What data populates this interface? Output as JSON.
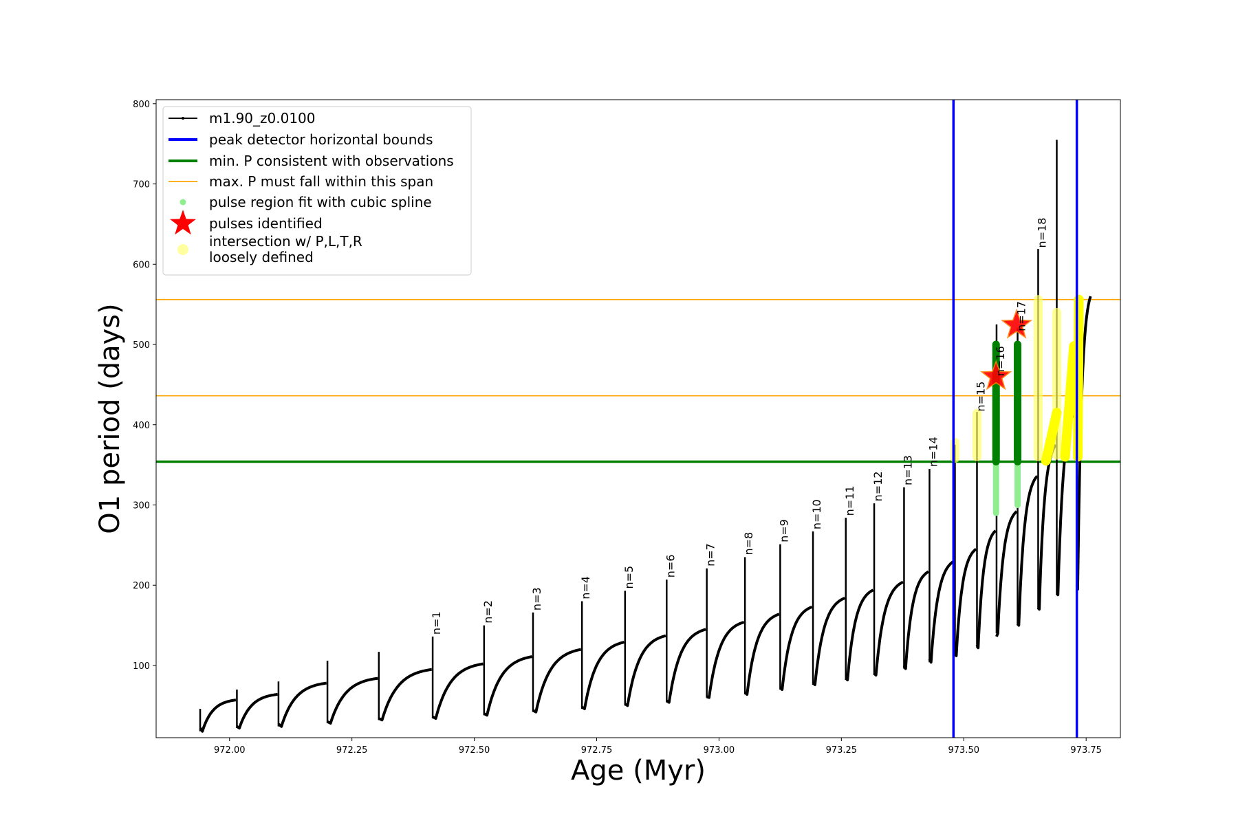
{
  "chart_data": {
    "type": "line",
    "xlabel": "Age (Myr)",
    "ylabel": "O1 period (days)",
    "xlim": [
      971.85,
      973.82
    ],
    "ylim": [
      10,
      805
    ],
    "xticks": [
      972.0,
      972.25,
      972.5,
      972.75,
      973.0,
      973.25,
      973.5,
      973.75
    ],
    "xtick_labels": [
      "972.00",
      "972.25",
      "972.50",
      "972.75",
      "973.00",
      "973.25",
      "973.50",
      "973.75"
    ],
    "yticks": [
      100,
      200,
      300,
      400,
      500,
      600,
      700,
      800
    ],
    "ytick_labels": [
      "100",
      "200",
      "300",
      "400",
      "500",
      "600",
      "700",
      "800"
    ],
    "grid": false,
    "legend_position": "top-left",
    "legend": [
      {
        "label": "m1.90_z0.0100",
        "style": "black-line-dot",
        "color": "#000000"
      },
      {
        "label": "peak detector horizontal bounds",
        "style": "line",
        "color": "#0000ff"
      },
      {
        "label": "min. P consistent with observations",
        "style": "line",
        "color": "#008000"
      },
      {
        "label": "max. P must fall within this span",
        "style": "thin-line",
        "color": "#ffa500"
      },
      {
        "label": "pulse region fit with cubic spline",
        "style": "dot",
        "color": "#90ee90"
      },
      {
        "label": "pulses identified",
        "style": "star",
        "color": "#ff0000"
      },
      {
        "label_lines": [
          "intersection w/ P,L,T,R",
          "loosely defined"
        ],
        "style": "circle",
        "color": "#ffffa0"
      }
    ],
    "vertical_bounds": [
      973.479,
      973.731
    ],
    "min_period": 354,
    "max_period_span": [
      436,
      556
    ],
    "cycles": [
      {
        "start": 971.94,
        "p0": 22,
        "p1": 57,
        "peak": 46,
        "min": 18
      },
      {
        "start": 972.015,
        "p0": 24,
        "p1": 64,
        "peak": 70,
        "min": 22
      },
      {
        "start": 972.1,
        "p0": 27,
        "p1": 78,
        "peak": 80,
        "min": 24
      },
      {
        "start": 972.2,
        "p0": 30,
        "p1": 84,
        "peak": 106,
        "min": 28
      },
      {
        "start": 972.305,
        "p0": 34,
        "p1": 95,
        "peak": 117,
        "min": 32
      },
      {
        "start": 972.415,
        "p0": 36,
        "p1": 102,
        "peak": 136,
        "min": 34
      },
      {
        "start": 972.52,
        "p0": 40,
        "p1": 111,
        "peak": 150,
        "min": 38
      },
      {
        "start": 972.62,
        "p0": 44,
        "p1": 120,
        "peak": 166,
        "min": 42
      },
      {
        "start": 972.72,
        "p0": 48,
        "p1": 129,
        "peak": 180,
        "min": 46
      },
      {
        "start": 972.808,
        "p0": 52,
        "p1": 137,
        "peak": 193,
        "min": 50
      },
      {
        "start": 972.893,
        "p0": 56,
        "p1": 145,
        "peak": 207,
        "min": 54
      },
      {
        "start": 972.975,
        "p0": 61,
        "p1": 154,
        "peak": 221,
        "min": 60
      },
      {
        "start": 973.053,
        "p0": 66,
        "p1": 164,
        "peak": 235,
        "min": 64
      },
      {
        "start": 973.125,
        "p0": 72,
        "p1": 173,
        "peak": 251,
        "min": 70
      },
      {
        "start": 973.192,
        "p0": 78,
        "p1": 184,
        "peak": 267,
        "min": 76
      },
      {
        "start": 973.259,
        "p0": 84,
        "p1": 194,
        "peak": 284,
        "min": 82
      },
      {
        "start": 973.317,
        "p0": 90,
        "p1": 204,
        "peak": 302,
        "min": 88
      },
      {
        "start": 973.378,
        "p0": 100,
        "p1": 217,
        "peak": 322,
        "min": 96
      },
      {
        "start": 973.43,
        "p0": 108,
        "p1": 230,
        "peak": 345,
        "min": 104
      },
      {
        "start": 973.482,
        "p0": 114,
        "p1": 245,
        "peak": 375,
        "min": 112
      },
      {
        "start": 973.527,
        "p0": 126,
        "p1": 268,
        "peak": 416,
        "min": 122
      },
      {
        "start": 973.567,
        "p0": 136,
        "p1": 292,
        "peak": 525,
        "min": 140
      },
      {
        "start": 973.61,
        "p0": 152,
        "p1": 336,
        "peak": 520,
        "min": 150
      },
      {
        "start": 973.652,
        "p0": 172,
        "p1": 375,
        "peak": 619,
        "min": 170
      },
      {
        "start": 973.69,
        "p0": 190,
        "p1": 420,
        "peak": 755,
        "min": 188
      },
      {
        "start": 973.731,
        "p0": 200,
        "p1": 560,
        "peak": 600,
        "min": 195
      }
    ],
    "cycle_labels": [
      {
        "text": "n=1",
        "x": 972.415,
        "y": 135
      },
      {
        "text": "n=2",
        "x": 972.52,
        "y": 149
      },
      {
        "text": "n=3",
        "x": 972.62,
        "y": 165
      },
      {
        "text": "n=4",
        "x": 972.72,
        "y": 179
      },
      {
        "text": "n=5",
        "x": 972.808,
        "y": 192
      },
      {
        "text": "n=6",
        "x": 972.893,
        "y": 206
      },
      {
        "text": "n=7",
        "x": 972.975,
        "y": 220
      },
      {
        "text": "n=8",
        "x": 973.053,
        "y": 234
      },
      {
        "text": "n=9",
        "x": 973.125,
        "y": 250
      },
      {
        "text": "n=10",
        "x": 973.192,
        "y": 266
      },
      {
        "text": "n=11",
        "x": 973.259,
        "y": 283
      },
      {
        "text": "n=12",
        "x": 973.317,
        "y": 301
      },
      {
        "text": "n=13",
        "x": 973.378,
        "y": 321
      },
      {
        "text": "n=14",
        "x": 973.43,
        "y": 344
      },
      {
        "text": "n=15",
        "x": 973.527,
        "y": 413
      },
      {
        "text": "n=16",
        "x": 973.567,
        "y": 457
      },
      {
        "text": "n=17",
        "x": 973.61,
        "y": 513
      },
      {
        "text": "n=18",
        "x": 973.652,
        "y": 617
      }
    ],
    "pulses_identified": [
      {
        "x": 973.566,
        "y": 460
      },
      {
        "x": 973.608,
        "y": 524
      }
    ],
    "spline_regions": [
      {
        "x": 973.566,
        "y_low": 290,
        "y_high": 500
      },
      {
        "x": 973.61,
        "y_low": 300,
        "y_high": 500
      }
    ],
    "green_segments": [
      {
        "x": 973.566,
        "y_low": 354,
        "y_high": 500
      },
      {
        "x": 973.61,
        "y_low": 354,
        "y_high": 500
      }
    ],
    "loose_vertical": [
      {
        "x": 973.482,
        "y_low": 358,
        "y_high": 378
      },
      {
        "x": 973.527,
        "y_low": 360,
        "y_high": 414
      },
      {
        "x": 973.652,
        "y_low": 360,
        "y_high": 556
      },
      {
        "x": 973.69,
        "y_low": 362,
        "y_high": 540
      }
    ],
    "loose_curves": [
      {
        "x0": 973.668,
        "x1": 973.69,
        "y0": 355,
        "y1": 415
      },
      {
        "x0": 973.707,
        "x1": 973.725,
        "y0": 360,
        "y1": 498
      },
      {
        "x0": 973.733,
        "x1": 973.735,
        "y0": 360,
        "y1": 556
      }
    ]
  }
}
